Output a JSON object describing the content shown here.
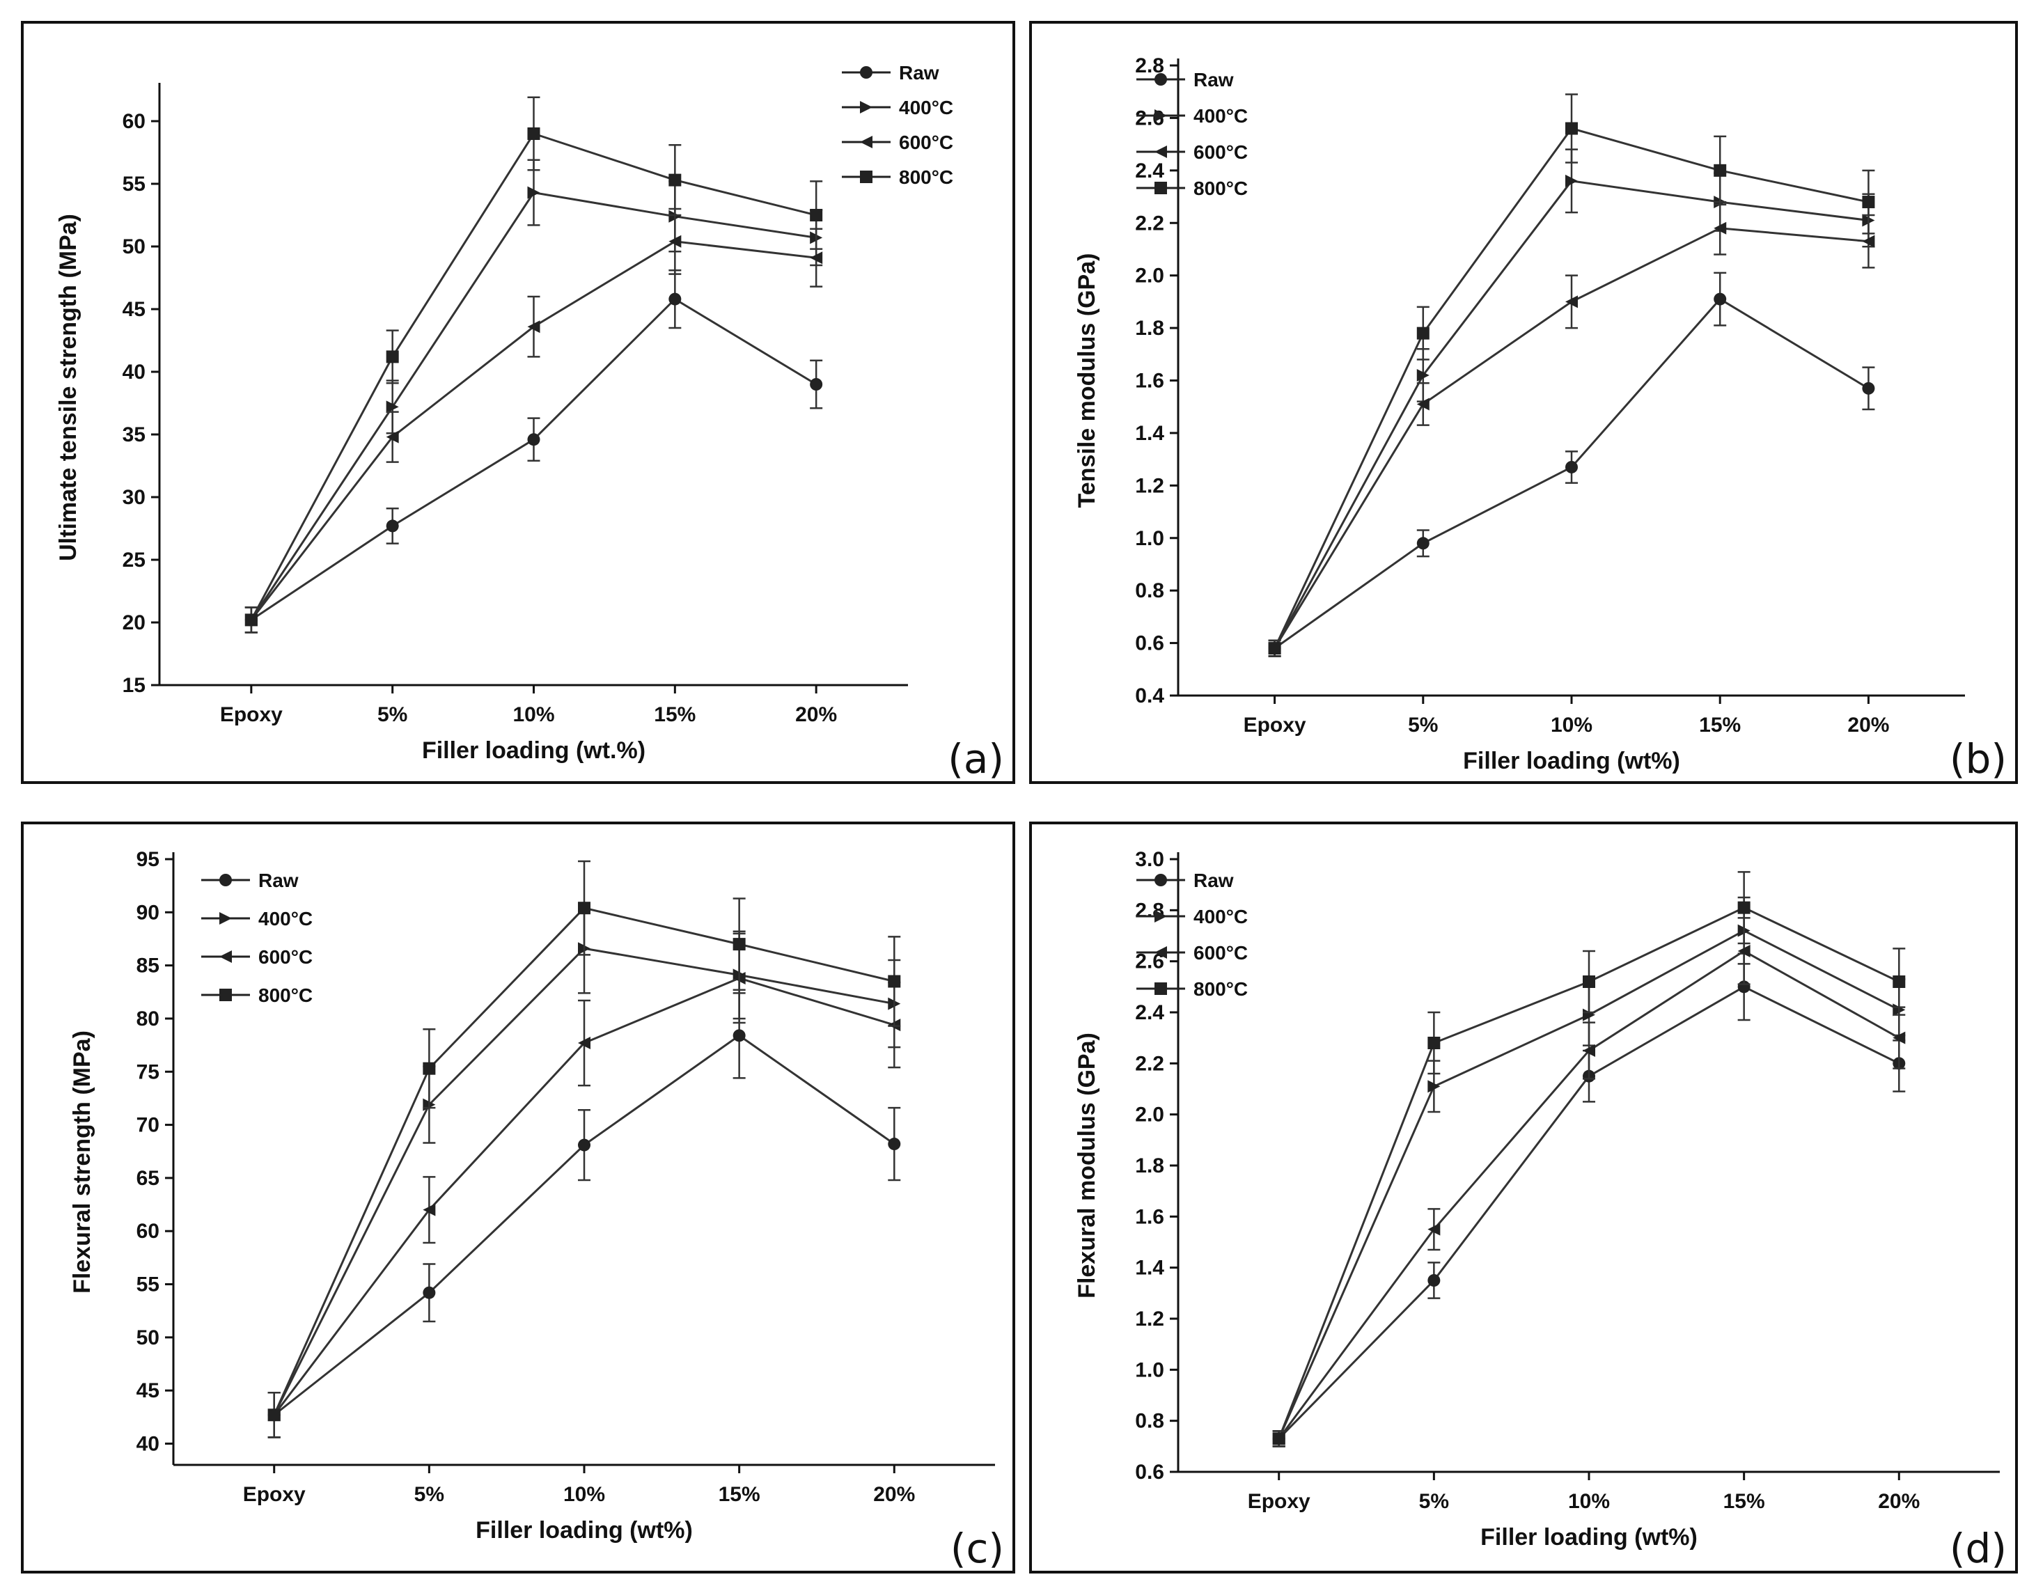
{
  "chart_data": [
    {
      "type": "line",
      "panel_label": "(a)",
      "categories": [
        "Epoxy",
        "5%",
        "10%",
        "15%",
        "20%"
      ],
      "xlabel": "Filler loading (wt.%)",
      "ylabel": "Ultimate tensile strength (MPa)",
      "ylim": [
        15,
        62.5
      ],
      "yticks": [
        15,
        20,
        25,
        30,
        35,
        40,
        45,
        50,
        55,
        60
      ],
      "ytick_labels": [
        "15",
        "20",
        "25",
        "30",
        "35",
        "40",
        "45",
        "50",
        "55",
        "60"
      ],
      "legend_position": "top-right",
      "series": [
        {
          "name": "Raw",
          "marker": "circle",
          "values": [
            20.2,
            27.7,
            34.6,
            45.8,
            39.0
          ],
          "errors": [
            1.0,
            1.4,
            1.7,
            2.3,
            1.9
          ]
        },
        {
          "name": "400°C",
          "marker": "triangle-right",
          "values": [
            20.2,
            37.2,
            54.3,
            52.4,
            50.7
          ],
          "errors": [
            1.0,
            2.1,
            2.6,
            2.8,
            2.2
          ]
        },
        {
          "name": "600°C",
          "marker": "triangle-left",
          "values": [
            20.2,
            34.8,
            43.6,
            50.4,
            49.1
          ],
          "errors": [
            1.0,
            2.0,
            2.4,
            2.6,
            2.3
          ]
        },
        {
          "name": "800°C",
          "marker": "square",
          "values": [
            20.2,
            41.2,
            59.0,
            55.3,
            52.5
          ],
          "errors": [
            1.0,
            2.1,
            2.9,
            2.8,
            2.7
          ]
        }
      ]
    },
    {
      "type": "line",
      "panel_label": "(b)",
      "categories": [
        "Epoxy",
        "5%",
        "10%",
        "15%",
        "20%"
      ],
      "xlabel": "Filler loading (wt%)",
      "ylabel": "Tensile modulus (GPa)",
      "ylim": [
        0.4,
        2.8
      ],
      "yticks": [
        0.4,
        0.6,
        0.8,
        1.0,
        1.2,
        1.4,
        1.6,
        1.8,
        2.0,
        2.2,
        2.4,
        2.6,
        2.8
      ],
      "ytick_labels": [
        "0.4",
        "0.6",
        "0.8",
        "1.0",
        "1.2",
        "1.4",
        "1.6",
        "1.8",
        "2.0",
        "2.2",
        "2.4",
        "2.6",
        "2.8"
      ],
      "legend_position": "top-left",
      "series": [
        {
          "name": "Raw",
          "marker": "circle",
          "values": [
            0.58,
            0.98,
            1.27,
            1.91,
            1.57
          ],
          "errors": [
            0.03,
            0.05,
            0.06,
            0.1,
            0.08
          ]
        },
        {
          "name": "400°C",
          "marker": "triangle-right",
          "values": [
            0.58,
            1.62,
            2.36,
            2.28,
            2.21
          ],
          "errors": [
            0.03,
            0.1,
            0.12,
            0.11,
            0.1
          ]
        },
        {
          "name": "600°C",
          "marker": "triangle-left",
          "values": [
            0.58,
            1.51,
            1.9,
            2.18,
            2.13
          ],
          "errors": [
            0.03,
            0.08,
            0.1,
            0.1,
            0.1
          ]
        },
        {
          "name": "800°C",
          "marker": "square",
          "values": [
            0.58,
            1.78,
            2.56,
            2.4,
            2.28
          ],
          "errors": [
            0.03,
            0.1,
            0.13,
            0.13,
            0.12
          ]
        }
      ]
    },
    {
      "type": "line",
      "panel_label": "(c)",
      "categories": [
        "Epoxy",
        "5%",
        "10%",
        "15%",
        "20%"
      ],
      "xlabel": "Filler loading (wt%)",
      "ylabel": "Flexural strength (MPa)",
      "ylim": [
        38,
        95
      ],
      "yticks": [
        40,
        45,
        50,
        55,
        60,
        65,
        70,
        75,
        80,
        85,
        90,
        95
      ],
      "ytick_labels": [
        "40",
        "45",
        "50",
        "55",
        "60",
        "65",
        "70",
        "75",
        "80",
        "85",
        "90",
        "95"
      ],
      "legend_position": "top-left",
      "series": [
        {
          "name": "Raw",
          "marker": "circle",
          "values": [
            42.7,
            54.2,
            68.1,
            78.4,
            68.2
          ],
          "errors": [
            2.1,
            2.7,
            3.3,
            4.0,
            3.4
          ]
        },
        {
          "name": "400°C",
          "marker": "triangle-right",
          "values": [
            42.7,
            71.9,
            86.6,
            84.1,
            81.4
          ],
          "errors": [
            2.1,
            3.6,
            4.2,
            4.1,
            4.1
          ]
        },
        {
          "name": "600°C",
          "marker": "triangle-left",
          "values": [
            42.7,
            62.0,
            77.7,
            83.8,
            79.4
          ],
          "errors": [
            2.1,
            3.1,
            4.0,
            4.2,
            4.0
          ]
        },
        {
          "name": "800°C",
          "marker": "square",
          "values": [
            42.7,
            75.3,
            90.4,
            87.0,
            83.5
          ],
          "errors": [
            2.1,
            3.7,
            4.4,
            4.3,
            4.2
          ]
        }
      ]
    },
    {
      "type": "line",
      "panel_label": "(d)",
      "categories": [
        "Epoxy",
        "5%",
        "10%",
        "15%",
        "20%"
      ],
      "xlabel": "Filler loading (wt%)",
      "ylabel": "Flexural modulus (GPa)",
      "ylim": [
        0.6,
        3.0
      ],
      "yticks": [
        0.6,
        0.8,
        1.0,
        1.2,
        1.4,
        1.6,
        1.8,
        2.0,
        2.2,
        2.4,
        2.6,
        2.8,
        3.0
      ],
      "ytick_labels": [
        "0.6",
        "0.8",
        "1.0",
        "1.2",
        "1.4",
        "1.6",
        "1.8",
        "2.0",
        "2.2",
        "2.4",
        "2.6",
        "2.8",
        "3.0"
      ],
      "legend_position": "top-left",
      "series": [
        {
          "name": "Raw",
          "marker": "circle",
          "values": [
            0.73,
            1.35,
            2.15,
            2.5,
            2.2
          ],
          "errors": [
            0.03,
            0.07,
            0.1,
            0.13,
            0.11
          ]
        },
        {
          "name": "400°C",
          "marker": "triangle-right",
          "values": [
            0.73,
            2.11,
            2.39,
            2.72,
            2.41
          ],
          "errors": [
            0.03,
            0.1,
            0.12,
            0.13,
            0.12
          ]
        },
        {
          "name": "600°C",
          "marker": "triangle-left",
          "values": [
            0.73,
            1.55,
            2.25,
            2.64,
            2.3
          ],
          "errors": [
            0.03,
            0.08,
            0.11,
            0.13,
            0.12
          ]
        },
        {
          "name": "800°C",
          "marker": "square",
          "values": [
            0.73,
            2.28,
            2.52,
            2.81,
            2.52
          ],
          "errors": [
            0.03,
            0.12,
            0.12,
            0.14,
            0.13
          ]
        }
      ]
    }
  ]
}
